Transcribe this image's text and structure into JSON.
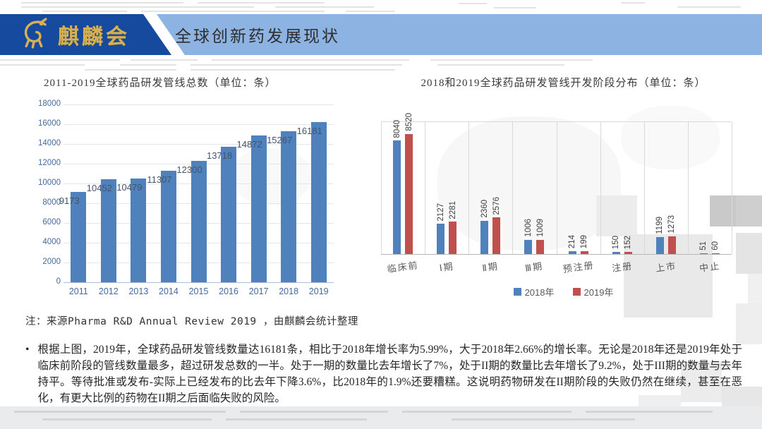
{
  "header": {
    "logo_text": "麒麟会",
    "title": "全球创新药发展现状"
  },
  "colors": {
    "brand_dark_blue": "#164a9e",
    "band_light_blue": "#8db3e2",
    "logo_gold": "#d7b054",
    "bar_blue": "#4f81bd",
    "bar_red": "#c0504d",
    "axis_blue": "#45699e",
    "data_label_blue": "#44546a",
    "category_label_gray": "#595959",
    "value_label_gray": "#3f3f3f"
  },
  "chart_data": [
    {
      "type": "bar",
      "title": "2011-2019全球药品研发管线总数（单位：条）",
      "categories": [
        "2011",
        "2012",
        "2013",
        "2014",
        "2015",
        "2016",
        "2017",
        "2018",
        "2019"
      ],
      "values": [
        9173,
        10452,
        10479,
        11307,
        12300,
        13718,
        14872,
        15267,
        16181
      ],
      "xlabel": "",
      "ylabel": "",
      "ylim": [
        0,
        18000
      ],
      "ytick_step": 2000,
      "grid": true,
      "bar_color": "#4f81bd",
      "legend": null
    },
    {
      "type": "bar",
      "title": "2018和2019全球药品研发管线开发阶段分布（单位：条）",
      "categories": [
        "临床前",
        "Ⅰ期",
        "Ⅱ期",
        "Ⅲ期",
        "预注册",
        "注册",
        "上市",
        "中止"
      ],
      "series": [
        {
          "name": "2018年",
          "color": "#4f81bd",
          "values": [
            8040,
            2127,
            2360,
            1006,
            214,
            150,
            1199,
            51
          ]
        },
        {
          "name": "2019年",
          "color": "#c0504d",
          "values": [
            8520,
            2281,
            2576,
            1009,
            199,
            152,
            1273,
            60
          ]
        }
      ],
      "ylim": [
        0,
        9000
      ],
      "grid": "vertical-category-separators",
      "legend_position": "bottom",
      "data_labels": "rotated-90"
    }
  ],
  "note": "注：来源Pharma R&D Annual Review 2019 ，由麒麟会统计整理",
  "analysis": {
    "bullet": "•",
    "text": "根据上图，2019年，全球药品研发管线数量达16181条，相比于2018年增长率为5.99%，大于2018年2.66%的增长率。无论是2018年还是2019年处于临床前阶段的管线数量最多，超过研发总数的一半。处于一期的数量比去年增长了7%，处于II期的数量比去年增长了9.2%，处于III期的数量与去年持平。等待批准或发布-实际上已经发布的比去年下降3.6%，比2018年的1.9%还要糟糕。这说明药物研发在II期阶段的失败仍然在继续，甚至在恶化，有更大比例的药物在II期之后面临失败的风险。"
  }
}
